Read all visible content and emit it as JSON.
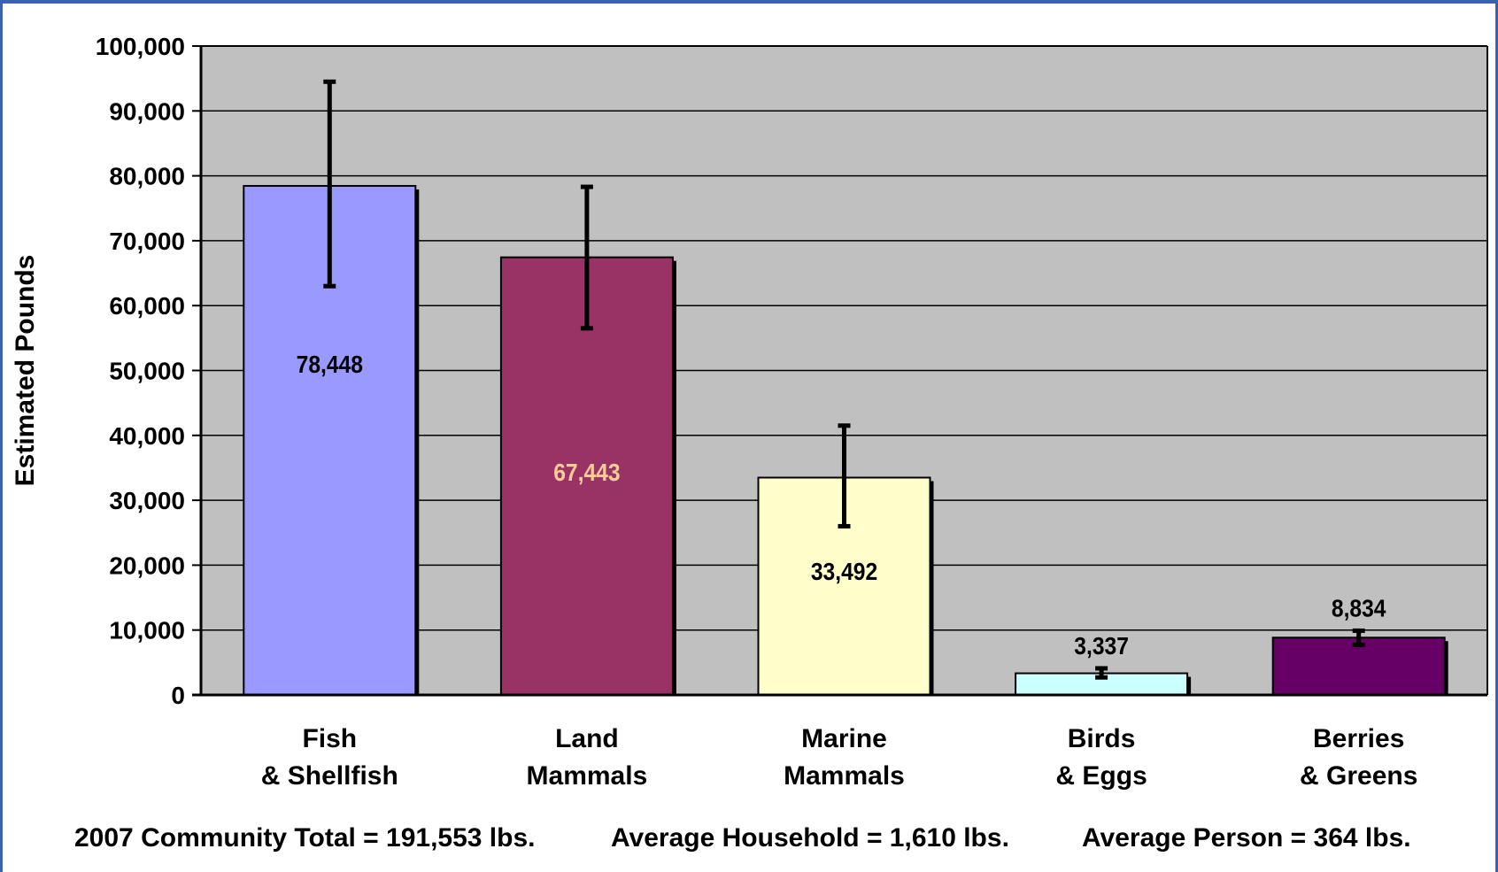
{
  "chart_data": {
    "type": "bar",
    "title": "",
    "xlabel": "",
    "ylabel": "Estimated Pounds",
    "ylim": [
      0,
      100000
    ],
    "yticks": [
      0,
      10000,
      20000,
      30000,
      40000,
      50000,
      60000,
      70000,
      80000,
      90000,
      100000
    ],
    "ytick_labels": [
      "0",
      "10,000",
      "20,000",
      "30,000",
      "40,000",
      "50,000",
      "60,000",
      "70,000",
      "80,000",
      "90,000",
      "100,000"
    ],
    "grid": true,
    "categories": [
      [
        "Fish",
        "& Shellfish"
      ],
      [
        "Land",
        "Mammals"
      ],
      [
        "Marine",
        "Mammals"
      ],
      [
        "Birds",
        "& Eggs"
      ],
      [
        "Berries",
        "& Greens"
      ]
    ],
    "values": [
      78448,
      67443,
      33492,
      3337,
      8834
    ],
    "value_labels": [
      "78,448",
      "67,443",
      "33,492",
      "3,337",
      "8,834"
    ],
    "error_low": [
      63000,
      56500,
      26000,
      2700,
      7700
    ],
    "error_high": [
      94500,
      78300,
      41500,
      4100,
      9900
    ],
    "bar_colors": [
      "#9999ff",
      "#993366",
      "#ffffcc",
      "#ccffff",
      "#660066"
    ],
    "label_colors": [
      "#000000",
      "#ffcc99",
      "#000000",
      "#000000",
      "#000000"
    ],
    "label_position": [
      "inside",
      "inside",
      "inside",
      "above",
      "above"
    ],
    "plot_background": "#c0c0c0"
  },
  "footer": {
    "community_total": "2007 Community Total = 191,553 lbs.",
    "average_household": "Average Household = 1,610 lbs.",
    "average_person": "Average Person = 364 lbs."
  }
}
